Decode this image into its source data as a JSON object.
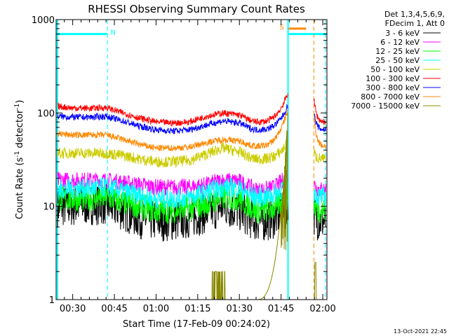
{
  "chart_data": {
    "type": "line",
    "title": "RHESSI Observing Summary Count Rates",
    "xlabel": "Start Time (17-Feb-09 00:24:02)",
    "ylabel_main": "Count Rate (s",
    "ylabel_sup1": "-1",
    "ylabel_mid": " detector",
    "ylabel_sup2": "-1",
    "ylabel_end": ")",
    "yscale": "log",
    "ylim": [
      1,
      1000
    ],
    "xlim_minutes": [
      24.03,
      121.5
    ],
    "x_ticks": [
      {
        "minute": 30,
        "label": "00:30"
      },
      {
        "minute": 45,
        "label": "00:45"
      },
      {
        "minute": 60,
        "label": "01:00"
      },
      {
        "minute": 75,
        "label": "01:15"
      },
      {
        "minute": 90,
        "label": "01:30"
      },
      {
        "minute": 105,
        "label": "01:45"
      },
      {
        "minute": 120,
        "label": "02:00"
      }
    ],
    "y_ticks": [
      {
        "value": 1,
        "label": "1"
      },
      {
        "value": 10,
        "label": "10"
      },
      {
        "value": 100,
        "label": "100"
      },
      {
        "value": 1000,
        "label": "1000"
      }
    ],
    "legend_header": [
      "Det 1,3,4,5,6,9,",
      "FDecim 1, Att 0"
    ],
    "legend_position": "right",
    "timestamp": "13-Oct-2021 22:45",
    "x_minutes": [
      24,
      30,
      36,
      42,
      48,
      54,
      60,
      66,
      72,
      78,
      84,
      90,
      94,
      96
    ],
    "series": [
      {
        "name": "3 - 6 keV",
        "color": "#000000",
        "values": [
          10,
          10,
          10.5,
          10.5,
          9,
          7.5,
          7,
          7,
          7.5,
          8.5,
          10,
          9,
          7.5,
          7
        ]
      },
      {
        "name": "6 - 12 keV",
        "color": "#ff00ff",
        "values": [
          19,
          19,
          19,
          19,
          18,
          17,
          16,
          16,
          16,
          17,
          19,
          18.5,
          16,
          15
        ]
      },
      {
        "name": "12 - 25 keV",
        "color": "#00ff00",
        "values": [
          12,
          12,
          12,
          12.5,
          11,
          10,
          9,
          9,
          9.5,
          10.5,
          12.5,
          12,
          10,
          9
        ]
      },
      {
        "name": "25 - 50 keV",
        "color": "#00ffff",
        "values": [
          15,
          15.5,
          15.5,
          16,
          14.5,
          13,
          12,
          12,
          12.5,
          14,
          16,
          15.5,
          13,
          12.5
        ]
      },
      {
        "name": "50 - 100 keV",
        "color": "#cccc00",
        "values": [
          37,
          37,
          37,
          37,
          35,
          32,
          30,
          30,
          31,
          36,
          42,
          38,
          33,
          32
        ]
      },
      {
        "name": "100 - 300 keV",
        "color": "#ff0000",
        "values": [
          118,
          113,
          112,
          114,
          100,
          88,
          80,
          78,
          80,
          92,
          100,
          95,
          83,
          80
        ]
      },
      {
        "name": "300 - 800 keV",
        "color": "#0000ff",
        "values": [
          92,
          90,
          90,
          92,
          82,
          72,
          66,
          64,
          66,
          74,
          82,
          78,
          68,
          66
        ]
      },
      {
        "name": "800 - 7000 keV",
        "color": "#ff8800",
        "values": [
          60,
          58,
          58,
          58,
          52,
          46,
          42,
          42,
          43,
          48,
          52,
          50,
          45,
          44
        ]
      },
      {
        "name": "7000 - 15000 keV",
        "color": "#888800",
        "values": [
          1,
          1,
          1,
          1,
          1,
          1,
          1,
          1,
          1,
          1,
          1,
          1,
          1,
          1
        ]
      }
    ],
    "segments": {
      "rise_start_minute": 96,
      "data_gap_minutes": [
        107.5,
        116.8
      ],
      "peak_values": [
        null,
        null,
        null,
        null,
        null,
        165,
        120,
        110,
        105,
        null
      ],
      "flags": [
        {
          "label": "N",
          "color": "#00ffff",
          "start_minute": 24.03,
          "end_minute": 42.5,
          "value": 700
        },
        {
          "label": "N",
          "color": "#00ffff",
          "start_minute": 107.5,
          "end_minute": 121.5,
          "value": 700
        },
        {
          "label": "S",
          "color": "#ff8800",
          "start_minute": 107.5,
          "end_minute": 114,
          "value": 800
        }
      ]
    },
    "grid": false
  }
}
